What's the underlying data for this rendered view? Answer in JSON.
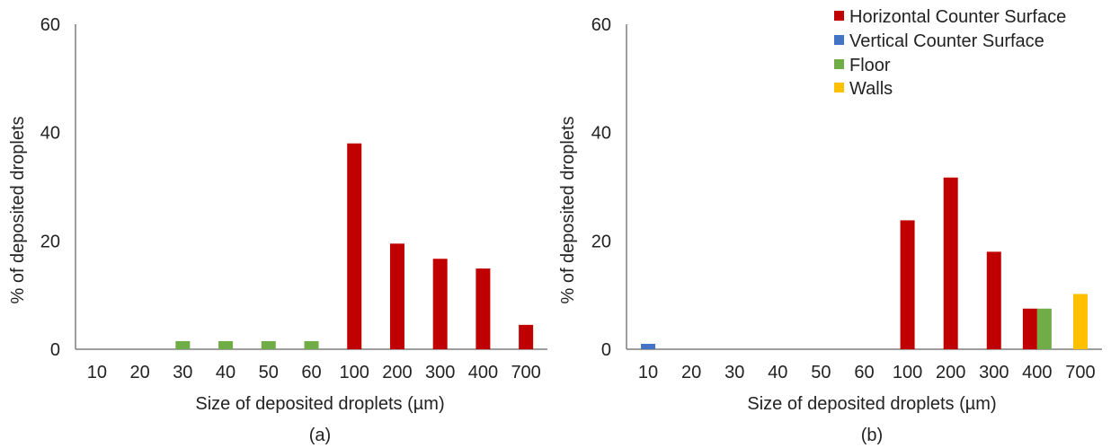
{
  "chart_data": [
    {
      "type": "bar",
      "panel_label": "(a)",
      "xlabel": "Size of deposited droplets (µm)",
      "ylabel": "% of deposited droplets",
      "ylim": [
        0,
        60
      ],
      "yticks": [
        "0",
        "20",
        "40",
        "60"
      ],
      "categories": [
        "10",
        "20",
        "30",
        "40",
        "50",
        "60",
        "100",
        "200",
        "300",
        "400",
        "700"
      ],
      "series": [
        {
          "name": "Horizontal Counter Surface",
          "color": "#c00000",
          "values": [
            0,
            0,
            0,
            0,
            0,
            0,
            38,
            19.5,
            16.7,
            14.9,
            4.5
          ]
        },
        {
          "name": "Vertical Counter Surface",
          "color": "#4472c4",
          "values": [
            0,
            0,
            0,
            0,
            0,
            0,
            0,
            0,
            0,
            0,
            0
          ]
        },
        {
          "name": "Floor",
          "color": "#70ad47",
          "values": [
            0,
            0,
            1.5,
            1.5,
            1.5,
            1.5,
            0,
            0,
            0,
            0,
            0
          ]
        },
        {
          "name": "Walls",
          "color": "#ffc000",
          "values": [
            0,
            0,
            0,
            0,
            0,
            0,
            0,
            0,
            0,
            0,
            0
          ]
        }
      ],
      "legend": false,
      "grid": false
    },
    {
      "type": "bar",
      "panel_label": "(b)",
      "xlabel": "Size of deposited droplets (µm)",
      "ylabel": "% of deposited droplets",
      "ylim": [
        0,
        60
      ],
      "yticks": [
        "0",
        "20",
        "40",
        "60"
      ],
      "categories": [
        "10",
        "20",
        "30",
        "40",
        "50",
        "60",
        "100",
        "200",
        "300",
        "400",
        "700"
      ],
      "series": [
        {
          "name": "Horizontal Counter Surface",
          "color": "#c00000",
          "values": [
            0,
            0,
            0,
            0,
            0,
            0,
            23.8,
            31.7,
            18,
            7.5,
            0
          ]
        },
        {
          "name": "Vertical Counter Surface",
          "color": "#4472c4",
          "values": [
            1,
            0,
            0,
            0,
            0,
            0,
            0,
            0,
            0,
            0,
            0
          ]
        },
        {
          "name": "Floor",
          "color": "#70ad47",
          "values": [
            0,
            0,
            0,
            0,
            0,
            0,
            0,
            0,
            0,
            7.5,
            0
          ]
        },
        {
          "name": "Walls",
          "color": "#ffc000",
          "values": [
            0,
            0,
            0,
            0,
            0,
            0,
            0,
            0,
            0,
            0,
            10.2
          ]
        }
      ],
      "legend": true,
      "legend_position": "top-right",
      "grid": false
    }
  ]
}
